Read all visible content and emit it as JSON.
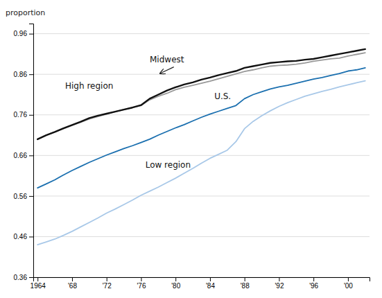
{
  "chart_data": {
    "type": "line",
    "y_label": "proportion",
    "x": [
      1964,
      1965,
      1966,
      1967,
      1968,
      1969,
      1970,
      1971,
      1972,
      1973,
      1974,
      1975,
      1976,
      1977,
      1978,
      1979,
      1980,
      1981,
      1982,
      1983,
      1984,
      1985,
      1986,
      1987,
      1988,
      1989,
      1990,
      1991,
      1992,
      1993,
      1994,
      1995,
      1996,
      1997,
      1998,
      1999,
      2000,
      2001,
      2002
    ],
    "series": [
      {
        "color": "#a8c8e8",
        "values": [
          0.44,
          0.447,
          0.454,
          0.463,
          0.473,
          0.484,
          0.495,
          0.506,
          0.518,
          0.528,
          0.539,
          0.55,
          0.562,
          0.572,
          0.582,
          0.593,
          0.604,
          0.616,
          0.628,
          0.641,
          0.653,
          0.663,
          0.673,
          0.694,
          0.726,
          0.744,
          0.758,
          0.77,
          0.781,
          0.79,
          0.798,
          0.806,
          0.812,
          0.818,
          0.823,
          0.829,
          0.834,
          0.839,
          0.844
        ]
      },
      {
        "color": "#1a6faf",
        "values": [
          0.58,
          0.59,
          0.6,
          0.612,
          0.623,
          0.633,
          0.643,
          0.652,
          0.661,
          0.669,
          0.677,
          0.684,
          0.692,
          0.7,
          0.71,
          0.719,
          0.728,
          0.736,
          0.745,
          0.754,
          0.762,
          0.769,
          0.776,
          0.783,
          0.8,
          0.81,
          0.817,
          0.824,
          0.829,
          0.833,
          0.838,
          0.843,
          0.848,
          0.852,
          0.857,
          0.862,
          0.868,
          0.871,
          0.876
        ]
      },
      {
        "color": "#999999",
        "values": [
          0.7,
          0.71,
          0.718,
          0.726,
          0.734,
          0.742,
          0.75,
          0.756,
          0.762,
          0.768,
          0.773,
          0.778,
          0.783,
          0.797,
          0.806,
          0.813,
          0.822,
          0.828,
          0.833,
          0.838,
          0.843,
          0.849,
          0.855,
          0.861,
          0.867,
          0.871,
          0.876,
          0.88,
          0.882,
          0.883,
          0.885,
          0.888,
          0.892,
          0.895,
          0.898,
          0.9,
          0.905,
          0.909,
          0.913
        ]
      },
      {
        "color": "#111111",
        "values": [
          0.7,
          0.71,
          0.718,
          0.727,
          0.735,
          0.743,
          0.752,
          0.758,
          0.763,
          0.768,
          0.773,
          0.778,
          0.784,
          0.8,
          0.81,
          0.82,
          0.828,
          0.835,
          0.84,
          0.847,
          0.852,
          0.858,
          0.863,
          0.868,
          0.876,
          0.88,
          0.884,
          0.888,
          0.89,
          0.892,
          0.893,
          0.896,
          0.898,
          0.902,
          0.906,
          0.91,
          0.914,
          0.918,
          0.922
        ]
      }
    ],
    "xlim": [
      1963.5,
      2002.5
    ],
    "xticks": [
      1964,
      {
        "value": 1968,
        "label": "'68"
      },
      {
        "value": 1972,
        "label": "'72"
      },
      {
        "value": 1976,
        "label": "'76"
      },
      {
        "value": 1980,
        "label": "'80"
      },
      {
        "value": 1984,
        "label": "'84"
      },
      {
        "value": 1988,
        "label": "'88"
      },
      {
        "value": 1992,
        "label": "'92"
      },
      {
        "value": 1996,
        "label": "'96"
      },
      {
        "value": 2000,
        "label": "'00"
      }
    ],
    "ylim": [
      0.36,
      0.985
    ],
    "yticks": [
      0.36,
      0.46,
      0.56,
      0.66,
      0.76,
      0.86,
      0.96
    ],
    "grid": true,
    "annotations": [
      {
        "text": "Midwest",
        "x": 1979.0,
        "y": 0.884,
        "arrow_from": [
          1979.8,
          0.878
        ],
        "arrow_to": [
          1978.2,
          0.862
        ]
      },
      {
        "text": "High region",
        "x": 1967.2,
        "y": 0.82
      },
      {
        "text": "U.S.",
        "x": 1984.5,
        "y": 0.794
      },
      {
        "text": "Low region",
        "x": 1976.5,
        "y": 0.624
      }
    ]
  }
}
